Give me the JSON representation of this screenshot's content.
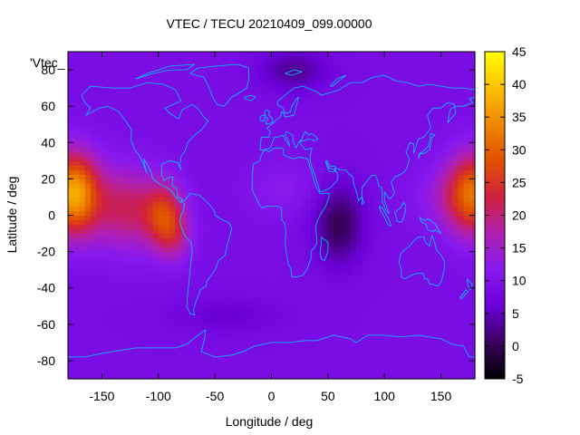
{
  "chart_data": {
    "type": "heatmap",
    "title": "VTEC / TECU 20210409_099.00000",
    "xlabel": "Longitude / deg",
    "ylabel": "Latitude / deg",
    "xlim": [
      -180,
      180
    ],
    "ylim": [
      -90,
      90
    ],
    "x_ticks": [
      -150,
      -100,
      -50,
      0,
      50,
      100,
      150
    ],
    "y_ticks": [
      -80,
      -60,
      -40,
      -20,
      0,
      20,
      40,
      60,
      80
    ],
    "colorbar": {
      "range": [
        -5,
        45
      ],
      "ticks": [
        -5,
        0,
        5,
        10,
        15,
        20,
        25,
        30,
        35,
        40,
        45
      ],
      "colors": [
        "#000000",
        "#3a005e",
        "#6a00d8",
        "#8818f0",
        "#b020b0",
        "#d02040",
        "#e05000",
        "#f08800",
        "#fbc000",
        "#ffff00"
      ]
    },
    "key_label": "'Vtec_",
    "background_vtec": 9,
    "features": [
      {
        "lon": -175,
        "lat": 12,
        "slon": 22,
        "slat": 22,
        "amp": 28
      },
      {
        "lon": -130,
        "lat": 4,
        "slon": 28,
        "slat": 22,
        "amp": 12
      },
      {
        "lon": -95,
        "lat": 0,
        "slon": 18,
        "slat": 18,
        "amp": 16
      },
      {
        "lon": -85,
        "lat": -12,
        "slon": 15,
        "slat": 14,
        "amp": 6
      },
      {
        "lon": 178,
        "lat": 12,
        "slon": 22,
        "slat": 22,
        "amp": 22
      },
      {
        "lon": 150,
        "lat": 10,
        "slon": 25,
        "slat": 18,
        "amp": 4
      },
      {
        "lon": 60,
        "lat": -5,
        "slon": 22,
        "slat": 22,
        "amp": -9
      },
      {
        "lon": 20,
        "lat": 80,
        "slon": 30,
        "slat": 12,
        "amp": -6
      },
      {
        "lon": -40,
        "lat": -55,
        "slon": 50,
        "slat": 10,
        "amp": -3
      },
      {
        "lon": 10,
        "lat": 15,
        "slon": 30,
        "slat": 15,
        "amp": 3
      }
    ]
  }
}
